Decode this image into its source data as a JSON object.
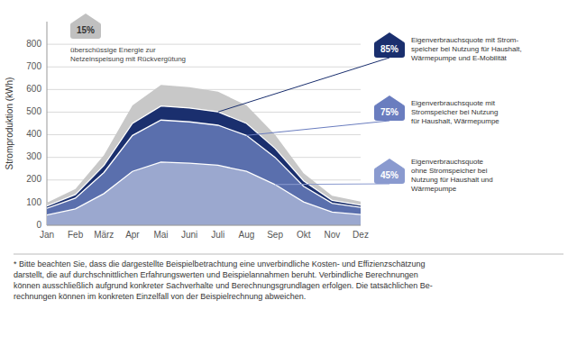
{
  "chart_data": {
    "type": "area",
    "stacked": false,
    "ylabel": "Stromproduktion (kWh)",
    "categories": [
      "Jan",
      "Feb",
      "März",
      "Apr",
      "Mai",
      "Juni",
      "Juli",
      "Aug",
      "Sep",
      "Okt",
      "Nov",
      "Dez"
    ],
    "series": [
      {
        "color": "#c8c8c8",
        "values": [
          100,
          160,
          310,
          530,
          620,
          610,
          590,
          530,
          400,
          230,
          130,
          105
        ]
      },
      {
        "color": "#1a2f6e",
        "values": [
          85,
          136,
          264,
          450,
          527,
          518,
          501,
          450,
          340,
          196,
          110,
          89
        ]
      },
      {
        "color": "#5a6fad",
        "values": [
          75,
          120,
          233,
          397,
          465,
          457,
          442,
          397,
          300,
          172,
          97,
          79
        ]
      },
      {
        "color": "#9ba8cf",
        "values": [
          45,
          72,
          140,
          238,
          279,
          274,
          265,
          238,
          180,
          103,
          58,
          47
        ]
      }
    ],
    "ylim": [
      0,
      900
    ],
    "yticks": [
      0,
      100,
      200,
      300,
      400,
      500,
      600,
      700,
      800
    ],
    "grid": true,
    "annotations": [
      {
        "label": "15%",
        "color": "#c0c0c0",
        "text": "überschüssige Energie zur\nNetzeinspeisung mit Rückvergütung"
      },
      {
        "label": "85%",
        "color": "#1a2f6e",
        "text": "Eigenverbrauchsquote mit  Strom-\nspeicher bei Nutzung für Haushalt,\nWärmepumpe und E-Mobilität"
      },
      {
        "label": "75%",
        "color": "#6a7dbf",
        "text": "Eigenverbrauchsquote mit\nStromspeicher bei Nutzung\nfür Haushalt, Wärmepumpe"
      },
      {
        "label": "45%",
        "color": "#8a9acf",
        "text": "Eigenverbrauchsquote\nohne Stromspeicher bei\nNutzung für Haushalt und\nWärmepumpe"
      }
    ],
    "footnote": "* Bitte beachten Sie, dass die dargestellte Beispielbetrachtung eine unverbindliche Kosten- und Effizienzschätzung\ndarstellt, die auf durchschnittlichen Erfahrungswerten und Beispielannahmen beruht. Verbindliche Berechnungen\nkönnen ausschließlich aufgrund konkreter Sachverhalte und Berechnungsgrundlagen erfolgen. Die tatsächlichen Be-\nrechnungen können im konkreten Einzelfall von der Beispielrechnung abweichen."
  }
}
